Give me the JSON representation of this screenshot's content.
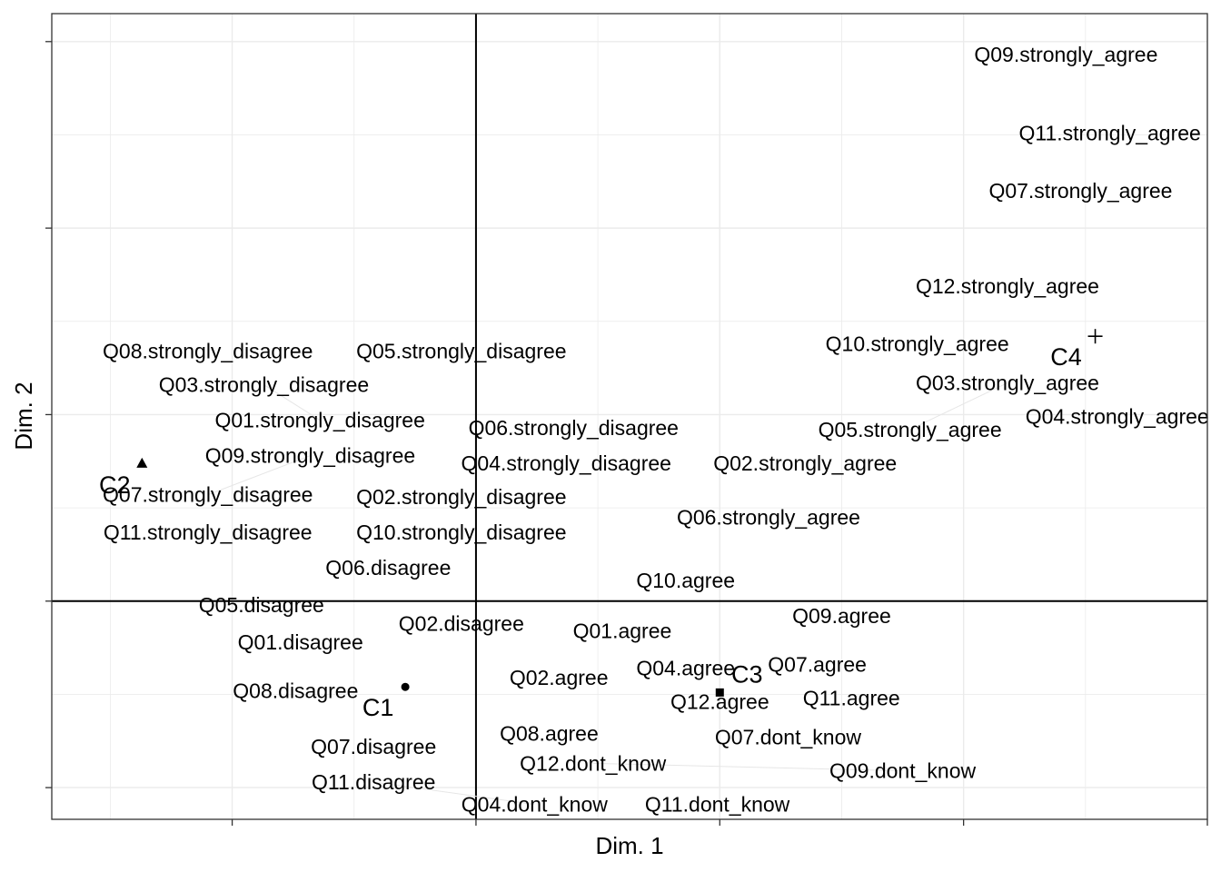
{
  "chart_data": {
    "type": "scatter",
    "title": "",
    "xlabel": "Dim. 1",
    "ylabel": "Dim. 2",
    "xlim": [
      -1.74,
      3.0
    ],
    "ylim": [
      -1.17,
      3.15
    ],
    "x_ticks": [
      -1,
      0,
      1,
      2,
      3
    ],
    "y_ticks": [
      -1,
      0,
      1,
      2,
      3
    ],
    "tick_labels_shown": false,
    "grid": true,
    "theme": "bw",
    "reference_lines": {
      "x": 0,
      "y": 0
    },
    "colors": {
      "text": "#000000",
      "grid": "#ebebeb",
      "axis_line": "#000000",
      "panel_border": "#333333",
      "connector": "#e6e6e6"
    },
    "clusters": [
      {
        "label": "C1",
        "shape": "circle",
        "x": -0.29,
        "y": -0.46
      },
      {
        "label": "C2",
        "shape": "triangle",
        "x": -1.37,
        "y": 0.74
      },
      {
        "label": "C3",
        "shape": "square",
        "x": 1.0,
        "y": -0.49
      },
      {
        "label": "C4",
        "shape": "plus",
        "x": 2.54,
        "y": 1.42
      }
    ],
    "points": [
      {
        "label": "Q09.strongly_agree",
        "x": 2.42,
        "y": 2.93
      },
      {
        "label": "Q11.strongly_agree",
        "x": 2.6,
        "y": 2.51
      },
      {
        "label": "Q07.strongly_agree",
        "x": 2.48,
        "y": 2.2
      },
      {
        "label": "Q12.strongly_agree",
        "x": 2.18,
        "y": 1.69
      },
      {
        "label": "Q10.strongly_agree",
        "x": 1.81,
        "y": 1.38
      },
      {
        "label": "Q03.strongly_agree",
        "x": 2.18,
        "y": 1.17
      },
      {
        "label": "Q04.strongly_agree",
        "x": 2.63,
        "y": 0.99
      },
      {
        "label": "Q05.strongly_agree",
        "x": 1.78,
        "y": 0.92
      },
      {
        "label": "Q02.strongly_agree",
        "x": 1.35,
        "y": 0.74
      },
      {
        "label": "Q06.strongly_agree",
        "x": 1.2,
        "y": 0.45
      },
      {
        "label": "Q08.strongly_disagree",
        "x": -1.1,
        "y": 1.34
      },
      {
        "label": "Q05.strongly_disagree",
        "x": -0.06,
        "y": 1.34
      },
      {
        "label": "Q03.strongly_disagree",
        "x": -0.87,
        "y": 1.16
      },
      {
        "label": "Q01.strongly_disagree",
        "x": -0.64,
        "y": 0.97
      },
      {
        "label": "Q06.strongly_disagree",
        "x": 0.4,
        "y": 0.93
      },
      {
        "label": "Q09.strongly_disagree",
        "x": -0.68,
        "y": 0.78
      },
      {
        "label": "Q04.strongly_disagree",
        "x": 0.37,
        "y": 0.74
      },
      {
        "label": "Q07.strongly_disagree",
        "x": -1.1,
        "y": 0.57
      },
      {
        "label": "Q02.strongly_disagree",
        "x": -0.06,
        "y": 0.56
      },
      {
        "label": "Q11.strongly_disagree",
        "x": -1.1,
        "y": 0.37
      },
      {
        "label": "Q10.strongly_disagree",
        "x": -0.06,
        "y": 0.37
      },
      {
        "label": "Q06.disagree",
        "x": -0.36,
        "y": 0.18
      },
      {
        "label": "Q10.agree",
        "x": 0.86,
        "y": 0.11
      },
      {
        "label": "Q05.disagree",
        "x": -0.88,
        "y": -0.02
      },
      {
        "label": "Q02.disagree",
        "x": -0.06,
        "y": -0.12
      },
      {
        "label": "Q09.agree",
        "x": 1.5,
        "y": -0.08
      },
      {
        "label": "Q01.disagree",
        "x": -0.72,
        "y": -0.22
      },
      {
        "label": "Q01.agree",
        "x": 0.6,
        "y": -0.16
      },
      {
        "label": "Q07.agree",
        "x": 1.4,
        "y": -0.34
      },
      {
        "label": "Q04.agree",
        "x": 0.86,
        "y": -0.36
      },
      {
        "label": "Q02.agree",
        "x": 0.34,
        "y": -0.41
      },
      {
        "label": "Q08.disagree",
        "x": -0.74,
        "y": -0.48
      },
      {
        "label": "Q12.agree",
        "x": 1.0,
        "y": -0.54
      },
      {
        "label": "Q11.agree",
        "x": 1.54,
        "y": -0.52
      },
      {
        "label": "Q07.dont_know",
        "x": 1.28,
        "y": -0.73
      },
      {
        "label": "Q08.agree",
        "x": 0.3,
        "y": -0.71
      },
      {
        "label": "Q07.disagree",
        "x": -0.42,
        "y": -0.78
      },
      {
        "label": "Q12.dont_know",
        "x": 0.48,
        "y": -0.87
      },
      {
        "label": "Q09.dont_know",
        "x": 1.75,
        "y": -0.91
      },
      {
        "label": "Q11.disagree",
        "x": -0.42,
        "y": -0.97
      },
      {
        "label": "Q04.dont_know",
        "x": 0.24,
        "y": -1.09
      },
      {
        "label": "Q11.dont_know",
        "x": 0.99,
        "y": -1.09
      }
    ]
  }
}
